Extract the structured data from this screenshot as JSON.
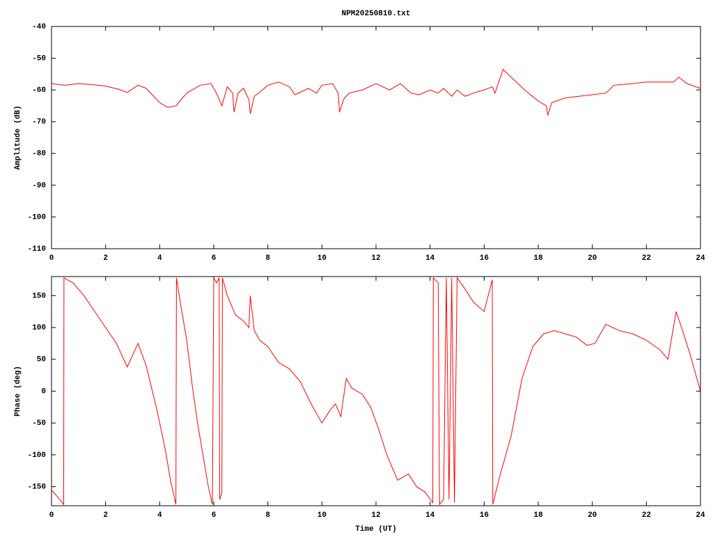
{
  "chart_data": [
    {
      "type": "line",
      "title": "NPM20250810.txt",
      "ylabel": "Amplitude (dB)",
      "color": "#ff0000",
      "xlim": [
        0,
        24
      ],
      "xticks": [
        0,
        2,
        4,
        6,
        8,
        10,
        12,
        14,
        16,
        18,
        20,
        22,
        24
      ],
      "ylim": [
        -110,
        -40
      ],
      "yticks": [
        -110,
        -100,
        -90,
        -80,
        -70,
        -60,
        -50,
        -40
      ],
      "x": [
        0,
        0.5,
        1,
        1.5,
        2,
        2.5,
        2.8,
        3.2,
        3.5,
        4,
        4.3,
        4.6,
        5,
        5.5,
        5.9,
        6.1,
        6.3,
        6.5,
        6.7,
        6.75,
        6.9,
        7.1,
        7.3,
        7.35,
        7.5,
        7.8,
        8,
        8.4,
        8.8,
        9,
        9.5,
        9.8,
        10,
        10.4,
        10.6,
        10.65,
        10.8,
        11,
        11.5,
        12,
        12.5,
        12.9,
        13.3,
        13.6,
        14,
        14.3,
        14.5,
        14.8,
        15,
        15.3,
        15.6,
        16,
        16.3,
        16.4,
        16.7,
        17,
        17.5,
        18,
        18.3,
        18.35,
        18.5,
        19,
        19.5,
        20,
        20.5,
        20.8,
        21.5,
        22,
        22.5,
        23,
        23.2,
        23.5,
        24
      ],
      "values": [
        -58,
        -58.5,
        -58,
        -58.3,
        -58.8,
        -59.8,
        -60.8,
        -58.5,
        -59.5,
        -64,
        -65.5,
        -65,
        -61,
        -58.5,
        -58,
        -61,
        -65,
        -59,
        -61,
        -67,
        -61,
        -59.5,
        -63,
        -67.5,
        -62,
        -60,
        -58.5,
        -57.5,
        -59,
        -61.5,
        -59.5,
        -61,
        -58.5,
        -58,
        -61,
        -67,
        -63,
        -61,
        -60,
        -58,
        -60,
        -58,
        -61,
        -61.5,
        -60,
        -61,
        -59.5,
        -62,
        -60,
        -62,
        -61,
        -60,
        -59,
        -61,
        -53.5,
        -56,
        -60,
        -63.5,
        -65,
        -68,
        -64,
        -62.5,
        -62,
        -61.5,
        -61,
        -58.5,
        -58,
        -57.5,
        -57.5,
        -57.5,
        -56,
        -58,
        -59.5
      ]
    },
    {
      "type": "line",
      "xlabel": "Time (UT)",
      "ylabel": "Phase (deg)",
      "color": "#ff0000",
      "xlim": [
        0,
        24
      ],
      "xticks": [
        0,
        2,
        4,
        6,
        8,
        10,
        12,
        14,
        16,
        18,
        20,
        22,
        24
      ],
      "ylim": [
        -180,
        180
      ],
      "yticks": [
        -150,
        -100,
        -50,
        0,
        50,
        100,
        150
      ],
      "x": [
        0,
        0.3,
        0.45,
        0.46,
        0.8,
        1.2,
        1.6,
        2,
        2.4,
        2.8,
        3.2,
        3.5,
        3.9,
        4.2,
        4.4,
        4.6,
        4.62,
        4.8,
        5,
        5.2,
        5.4,
        5.6,
        5.8,
        5.95,
        6.0,
        6.1,
        6.2,
        6.22,
        6.3,
        6.32,
        6.5,
        6.8,
        7.1,
        7.3,
        7.35,
        7.5,
        7.7,
        8,
        8.4,
        8.8,
        9.2,
        9.6,
        10,
        10.3,
        10.5,
        10.7,
        10.9,
        11.1,
        11.5,
        11.8,
        12.1,
        12.4,
        12.8,
        13.2,
        13.5,
        13.8,
        14.1,
        14.12,
        14.3,
        14.35,
        14.5,
        14.6,
        14.7,
        14.8,
        14.9,
        15.0,
        15.3,
        15.6,
        16,
        16.3,
        16.32,
        16.6,
        17,
        17.4,
        17.8,
        18.2,
        18.6,
        19,
        19.4,
        19.8,
        20.1,
        20.5,
        21,
        21.5,
        22,
        22.5,
        22.8,
        23,
        23.1,
        23.3,
        23.6,
        24
      ],
      "values": [
        -155,
        -170,
        -178,
        178,
        170,
        150,
        125,
        100,
        75,
        38,
        75,
        40,
        -30,
        -90,
        -140,
        -178,
        178,
        130,
        80,
        10,
        -50,
        -100,
        -150,
        -178,
        178,
        170,
        178,
        -170,
        -160,
        178,
        150,
        120,
        110,
        100,
        150,
        95,
        80,
        70,
        45,
        35,
        15,
        -20,
        -50,
        -30,
        -20,
        -40,
        20,
        5,
        -5,
        -25,
        -60,
        -100,
        -140,
        -130,
        -150,
        -158,
        -175,
        178,
        170,
        -178,
        -170,
        178,
        -170,
        178,
        -175,
        178,
        160,
        140,
        125,
        175,
        -178,
        -130,
        -70,
        20,
        70,
        90,
        95,
        90,
        85,
        72,
        75,
        105,
        95,
        90,
        80,
        65,
        50,
        100,
        125,
        100,
        60,
        0
      ]
    }
  ]
}
